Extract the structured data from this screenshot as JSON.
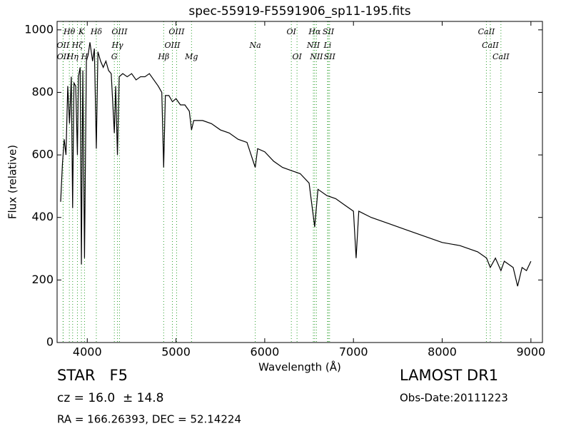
{
  "chart_data": {
    "type": "line",
    "title": "spec-55919-F5591906_sp11-195.fits",
    "x_label": "Wavelength (Å)",
    "y_label": "Flux (relative)",
    "xlim": [
      3660,
      9130
    ],
    "ylim": [
      0,
      1027
    ],
    "xticks": [
      4000,
      5000,
      6000,
      7000,
      8000,
      9000
    ],
    "yticks": [
      0,
      200,
      400,
      600,
      800,
      1000
    ],
    "series": [
      {
        "name": "flux",
        "color": "#000000",
        "x": [
          3700,
          3720,
          3740,
          3760,
          3780,
          3800,
          3820,
          3835,
          3850,
          3870,
          3889,
          3900,
          3920,
          3934,
          3950,
          3969,
          3990,
          4010,
          4030,
          4060,
          4080,
          4102,
          4120,
          4150,
          4180,
          4210,
          4240,
          4270,
          4305,
          4320,
          4340,
          4360,
          4400,
          4450,
          4500,
          4550,
          4600,
          4650,
          4700,
          4750,
          4800,
          4840,
          4861,
          4880,
          4920,
          4960,
          5000,
          5050,
          5100,
          5150,
          5175,
          5200,
          5300,
          5400,
          5500,
          5600,
          5700,
          5800,
          5893,
          5920,
          6000,
          6100,
          6200,
          6300,
          6400,
          6500,
          6563,
          6600,
          6700,
          6800,
          6900,
          7000,
          7030,
          7060,
          7200,
          7400,
          7600,
          7800,
          8000,
          8200,
          8400,
          8500,
          8542,
          8600,
          8662,
          8700,
          8800,
          8850,
          8900,
          8950,
          9000
        ],
        "values": [
          450,
          570,
          650,
          600,
          820,
          700,
          850,
          430,
          830,
          820,
          600,
          850,
          880,
          250,
          870,
          270,
          900,
          920,
          960,
          900,
          940,
          620,
          930,
          900,
          880,
          900,
          870,
          860,
          670,
          820,
          600,
          850,
          860,
          850,
          860,
          840,
          850,
          850,
          860,
          840,
          820,
          800,
          560,
          790,
          790,
          770,
          780,
          760,
          760,
          740,
          680,
          710,
          710,
          700,
          680,
          670,
          650,
          640,
          560,
          620,
          610,
          580,
          560,
          550,
          540,
          510,
          370,
          490,
          470,
          460,
          440,
          420,
          270,
          420,
          400,
          380,
          360,
          340,
          320,
          310,
          290,
          270,
          240,
          270,
          230,
          260,
          240,
          180,
          240,
          230,
          260
        ]
      }
    ],
    "line_color": "#2ca02c",
    "lines": [
      {
        "label": "Hθ",
        "wavelength": 3798,
        "row": 0
      },
      {
        "label": "K",
        "wavelength": 3934,
        "row": 0
      },
      {
        "label": "Hδ",
        "wavelength": 4102,
        "row": 0
      },
      {
        "label": "OIII",
        "wavelength": 4363,
        "row": 0
      },
      {
        "label": "OIII",
        "wavelength": 5007,
        "row": 0
      },
      {
        "label": "OI",
        "wavelength": 6300,
        "row": 0
      },
      {
        "label": "Hα",
        "wavelength": 6563,
        "row": 0
      },
      {
        "label": "SII",
        "wavelength": 6717,
        "row": 0
      },
      {
        "label": "CaII",
        "wavelength": 8498,
        "row": 0
      },
      {
        "label": "OII",
        "wavelength": 3727,
        "row": 1
      },
      {
        "label": "Hζ",
        "wavelength": 3889,
        "row": 1
      },
      {
        "label": "Hγ",
        "wavelength": 4340,
        "row": 1
      },
      {
        "label": "OIII",
        "wavelength": 4959,
        "row": 1
      },
      {
        "label": "Na",
        "wavelength": 5893,
        "row": 1
      },
      {
        "label": "NII",
        "wavelength": 6548,
        "row": 1
      },
      {
        "label": "Li",
        "wavelength": 6708,
        "row": 1
      },
      {
        "label": "CaII",
        "wavelength": 8542,
        "row": 1
      },
      {
        "label": "OII",
        "wavelength": 3729,
        "row": 2
      },
      {
        "label": "Hη",
        "wavelength": 3835,
        "row": 2
      },
      {
        "label": "H",
        "wavelength": 3969,
        "row": 2
      },
      {
        "label": "G",
        "wavelength": 4305,
        "row": 2
      },
      {
        "label": "Hβ",
        "wavelength": 4861,
        "row": 2
      },
      {
        "label": "Mg",
        "wavelength": 5175,
        "row": 2
      },
      {
        "label": "OI",
        "wavelength": 6364,
        "row": 2
      },
      {
        "label": "NII",
        "wavelength": 6583,
        "row": 2
      },
      {
        "label": "SII",
        "wavelength": 6731,
        "row": 2
      },
      {
        "label": "CaII",
        "wavelength": 8662,
        "row": 2
      }
    ],
    "annotations": {
      "class": "STAR   F5",
      "cz": "cz = 16.0  ± 14.8",
      "coords": "RA = 166.26393, DEC = 52.14224",
      "survey": "LAMOST DR1",
      "date": "Obs-Date:20111223"
    }
  }
}
